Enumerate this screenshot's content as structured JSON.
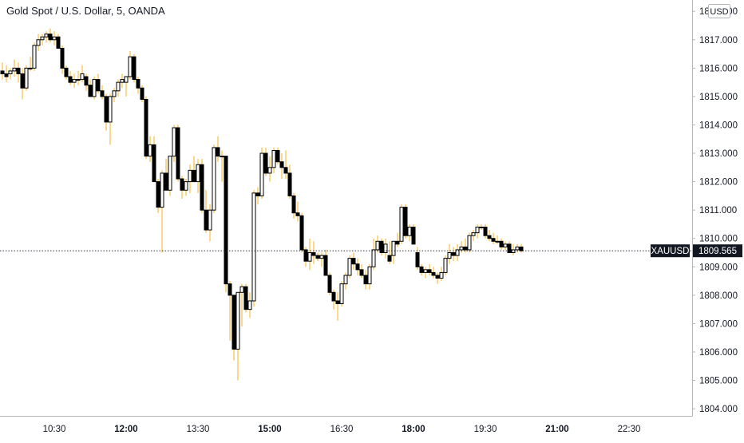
{
  "chart_title": "Gold Spot / U.S. Dollar, 5, OANDA",
  "currency": "USD",
  "symbol_tag": "XAUUSD",
  "last_price_label": "1809.565",
  "colors": {
    "up": "#ffffff",
    "down": "#000000",
    "wick": "#f5b21b",
    "border": "#000000",
    "last_tag": "#131722"
  },
  "chart_data": {
    "type": "candlestick",
    "title": "Gold Spot / U.S. Dollar, 5, OANDA",
    "interval": "5",
    "ylim": [
      1803.75,
      1818.4
    ],
    "y_ticks": [
      {
        "value": 1804,
        "label": "1804.000"
      },
      {
        "value": 1805,
        "label": "1805.000"
      },
      {
        "value": 1806,
        "label": "1806.000"
      },
      {
        "value": 1807,
        "label": "1807.000"
      },
      {
        "value": 1808,
        "label": "1808.000"
      },
      {
        "value": 1809,
        "label": "1809.000"
      },
      {
        "value": 1810,
        "label": "1810.000"
      },
      {
        "value": 1811,
        "label": "1811.000"
      },
      {
        "value": 1812,
        "label": "1812.000"
      },
      {
        "value": 1813,
        "label": "1813.000"
      },
      {
        "value": 1814,
        "label": "1814.000"
      },
      {
        "value": 1815,
        "label": "1815.000"
      },
      {
        "value": 1816,
        "label": "1816.000"
      },
      {
        "value": 1817,
        "label": "1817.000"
      },
      {
        "value": 1818,
        "label": "1818.000"
      }
    ],
    "x_ticks": [
      {
        "index": 6,
        "label": "10:30",
        "bold": false
      },
      {
        "index": 24,
        "label": "12:00",
        "bold": true
      },
      {
        "index": 42,
        "label": "13:30",
        "bold": false
      },
      {
        "index": 60,
        "label": "15:00",
        "bold": true
      },
      {
        "index": 78,
        "label": "16:30",
        "bold": false
      },
      {
        "index": 96,
        "label": "18:00",
        "bold": true
      },
      {
        "index": 114,
        "label": "19:30",
        "bold": false
      },
      {
        "index": 132,
        "label": "21:00",
        "bold": true
      },
      {
        "index": 150,
        "label": "22:30",
        "bold": false
      }
    ],
    "last_price": 1809.565,
    "ohlc": [
      [
        1815.9,
        1816.2,
        1815.6,
        1815.8
      ],
      [
        1815.8,
        1816.1,
        1815.5,
        1815.7
      ],
      [
        1815.8,
        1816.0,
        1815.6,
        1815.9
      ],
      [
        1815.9,
        1816.3,
        1815.7,
        1816.0
      ],
      [
        1816.0,
        1816.2,
        1815.5,
        1815.8
      ],
      [
        1815.8,
        1816.0,
        1814.9,
        1815.3
      ],
      [
        1815.3,
        1816.1,
        1815.2,
        1816.0
      ],
      [
        1816.0,
        1816.4,
        1815.9,
        1816.0
      ],
      [
        1816.0,
        1816.9,
        1815.9,
        1816.8
      ],
      [
        1816.8,
        1817.2,
        1816.6,
        1817.0
      ],
      [
        1817.0,
        1817.2,
        1816.8,
        1817.1
      ],
      [
        1817.1,
        1817.3,
        1816.9,
        1817.2
      ],
      [
        1817.2,
        1817.4,
        1816.9,
        1817.0
      ],
      [
        1817.0,
        1817.3,
        1816.8,
        1817.1
      ],
      [
        1817.1,
        1817.2,
        1816.7,
        1816.7
      ],
      [
        1816.7,
        1816.8,
        1815.8,
        1816.0
      ],
      [
        1816.0,
        1816.1,
        1815.6,
        1815.7
      ],
      [
        1815.7,
        1815.9,
        1815.4,
        1815.5
      ],
      [
        1815.5,
        1815.8,
        1815.3,
        1815.6
      ],
      [
        1815.6,
        1815.9,
        1815.4,
        1815.6
      ],
      [
        1815.6,
        1816.1,
        1815.5,
        1815.8
      ],
      [
        1815.7,
        1815.8,
        1815.2,
        1815.4
      ],
      [
        1815.4,
        1815.6,
        1815.0,
        1815.0
      ],
      [
        1815.0,
        1815.7,
        1814.9,
        1815.6
      ],
      [
        1815.6,
        1815.8,
        1815.1,
        1815.2
      ],
      [
        1815.2,
        1815.4,
        1814.9,
        1815.0
      ],
      [
        1815.0,
        1815.1,
        1813.8,
        1814.1
      ],
      [
        1814.1,
        1815.1,
        1813.3,
        1815.0
      ],
      [
        1815.0,
        1815.3,
        1814.8,
        1815.2
      ],
      [
        1815.2,
        1815.6,
        1815.0,
        1815.5
      ],
      [
        1815.5,
        1815.8,
        1815.3,
        1815.6
      ],
      [
        1815.5,
        1815.7,
        1815.0,
        1815.7
      ],
      [
        1815.7,
        1816.6,
        1815.6,
        1816.4
      ],
      [
        1816.4,
        1816.5,
        1815.5,
        1815.6
      ],
      [
        1815.6,
        1815.7,
        1815.1,
        1815.3
      ],
      [
        1815.3,
        1815.4,
        1814.8,
        1814.9
      ],
      [
        1814.9,
        1815.0,
        1812.8,
        1812.9
      ],
      [
        1812.9,
        1813.6,
        1812.7,
        1813.3
      ],
      [
        1813.3,
        1813.6,
        1812.0,
        1812.0
      ],
      [
        1812.0,
        1812.1,
        1810.9,
        1811.1
      ],
      [
        1811.1,
        1812.4,
        1809.5,
        1812.3
      ],
      [
        1812.3,
        1812.8,
        1811.7,
        1811.7
      ],
      [
        1811.7,
        1812.9,
        1811.5,
        1812.9
      ],
      [
        1812.9,
        1814.0,
        1812.7,
        1813.9
      ],
      [
        1813.9,
        1814.0,
        1812.0,
        1812.1
      ],
      [
        1812.1,
        1812.2,
        1811.4,
        1811.7
      ],
      [
        1811.7,
        1812.1,
        1811.5,
        1812.0
      ],
      [
        1812.0,
        1812.6,
        1811.6,
        1812.4
      ],
      [
        1812.4,
        1812.9,
        1812.0,
        1812.0
      ],
      [
        1812.0,
        1812.8,
        1811.6,
        1812.6
      ],
      [
        1812.6,
        1812.8,
        1810.9,
        1811.0
      ],
      [
        1811.0,
        1811.7,
        1810.2,
        1810.3
      ],
      [
        1810.3,
        1811.2,
        1809.9,
        1811.0
      ],
      [
        1811.0,
        1813.3,
        1810.9,
        1813.2
      ],
      [
        1813.2,
        1813.6,
        1812.7,
        1812.9
      ],
      [
        1812.9,
        1813.1,
        1812.0,
        1812.9
      ],
      [
        1812.9,
        1812.9,
        1808.1,
        1808.4
      ],
      [
        1808.4,
        1808.5,
        1806.4,
        1808.0
      ],
      [
        1808.0,
        1808.0,
        1805.7,
        1806.1
      ],
      [
        1806.1,
        1808.1,
        1805.0,
        1808.1
      ],
      [
        1808.1,
        1808.4,
        1806.9,
        1808.3
      ],
      [
        1808.3,
        1808.4,
        1807.4,
        1807.5
      ],
      [
        1807.5,
        1808.1,
        1807.2,
        1807.8
      ],
      [
        1807.8,
        1811.7,
        1807.6,
        1811.6
      ],
      [
        1811.6,
        1811.8,
        1811.2,
        1811.5
      ],
      [
        1811.5,
        1813.2,
        1811.4,
        1813.0
      ],
      [
        1813.0,
        1813.2,
        1812.2,
        1812.3
      ],
      [
        1812.3,
        1812.9,
        1812.0,
        1812.5
      ],
      [
        1812.5,
        1813.2,
        1812.3,
        1813.1
      ],
      [
        1813.1,
        1813.2,
        1812.6,
        1812.7
      ],
      [
        1812.7,
        1813.0,
        1812.1,
        1812.5
      ],
      [
        1812.5,
        1813.1,
        1812.1,
        1812.3
      ],
      [
        1812.3,
        1812.6,
        1811.4,
        1811.5
      ],
      [
        1811.5,
        1811.6,
        1810.7,
        1810.9
      ],
      [
        1810.9,
        1811.3,
        1810.6,
        1810.8
      ],
      [
        1810.8,
        1810.9,
        1809.5,
        1809.6
      ],
      [
        1809.6,
        1809.7,
        1809.0,
        1809.2
      ],
      [
        1809.2,
        1810.0,
        1808.9,
        1809.5
      ],
      [
        1809.5,
        1809.9,
        1809.1,
        1809.4
      ],
      [
        1809.4,
        1809.5,
        1809.2,
        1809.3
      ],
      [
        1809.3,
        1809.5,
        1809.0,
        1809.4
      ],
      [
        1809.4,
        1809.6,
        1808.7,
        1808.7
      ],
      [
        1808.7,
        1808.8,
        1808.0,
        1808.1
      ],
      [
        1808.1,
        1808.2,
        1807.5,
        1807.8
      ],
      [
        1807.8,
        1808.1,
        1807.1,
        1807.7
      ],
      [
        1807.7,
        1808.5,
        1807.6,
        1808.4
      ],
      [
        1808.4,
        1808.8,
        1808.2,
        1808.7
      ],
      [
        1808.7,
        1809.4,
        1808.6,
        1809.3
      ],
      [
        1809.3,
        1809.5,
        1808.9,
        1809.1
      ],
      [
        1809.1,
        1809.3,
        1808.7,
        1808.9
      ],
      [
        1808.9,
        1809.1,
        1808.6,
        1808.7
      ],
      [
        1808.7,
        1808.9,
        1808.2,
        1808.4
      ],
      [
        1808.4,
        1809.1,
        1808.2,
        1809.0
      ],
      [
        1809.0,
        1810.0,
        1808.9,
        1809.6
      ],
      [
        1809.6,
        1810.1,
        1809.5,
        1809.9
      ],
      [
        1809.9,
        1810.0,
        1809.4,
        1809.5
      ],
      [
        1809.5,
        1810.0,
        1809.3,
        1809.8
      ],
      [
        1809.4,
        1809.9,
        1809.1,
        1809.2
      ],
      [
        1809.4,
        1809.9,
        1809.1,
        1809.9
      ],
      [
        1809.9,
        1810.2,
        1809.7,
        1809.8
      ],
      [
        1809.9,
        1811.2,
        1809.8,
        1811.1
      ],
      [
        1811.1,
        1811.2,
        1810.0,
        1810.1
      ],
      [
        1810.1,
        1810.5,
        1809.9,
        1810.4
      ],
      [
        1810.4,
        1810.5,
        1809.9,
        1809.8
      ],
      [
        1809.5,
        1809.7,
        1808.9,
        1809.0
      ],
      [
        1809.0,
        1809.1,
        1808.7,
        1808.8
      ],
      [
        1808.8,
        1809.0,
        1808.6,
        1808.9
      ],
      [
        1808.9,
        1809.1,
        1808.7,
        1808.8
      ],
      [
        1808.8,
        1809.0,
        1808.6,
        1808.7
      ],
      [
        1808.7,
        1808.8,
        1808.4,
        1808.6
      ],
      [
        1808.6,
        1809.0,
        1808.5,
        1808.8
      ],
      [
        1808.8,
        1809.4,
        1808.7,
        1809.3
      ],
      [
        1809.3,
        1809.8,
        1809.1,
        1809.5
      ],
      [
        1809.5,
        1809.7,
        1809.2,
        1809.4
      ],
      [
        1809.4,
        1809.8,
        1809.2,
        1809.6
      ],
      [
        1809.6,
        1809.9,
        1809.5,
        1809.7
      ],
      [
        1809.7,
        1810.0,
        1809.5,
        1809.6
      ],
      [
        1809.6,
        1810.2,
        1809.5,
        1810.1
      ],
      [
        1810.1,
        1810.3,
        1809.9,
        1810.2
      ],
      [
        1810.2,
        1810.5,
        1810.0,
        1810.4
      ],
      [
        1810.4,
        1810.5,
        1810.3,
        1810.4
      ],
      [
        1810.4,
        1810.5,
        1810.0,
        1810.1
      ],
      [
        1810.1,
        1810.3,
        1809.9,
        1810.0
      ],
      [
        1810.0,
        1810.2,
        1809.8,
        1809.9
      ],
      [
        1809.9,
        1810.1,
        1809.8,
        1809.9
      ],
      [
        1809.9,
        1810.0,
        1809.6,
        1809.7
      ],
      [
        1809.7,
        1809.9,
        1809.6,
        1809.8
      ],
      [
        1809.8,
        1809.9,
        1809.5,
        1809.5
      ],
      [
        1809.5,
        1809.8,
        1809.4,
        1809.6
      ],
      [
        1809.6,
        1809.8,
        1809.5,
        1809.7
      ],
      [
        1809.7,
        1809.8,
        1809.5,
        1809.565
      ]
    ]
  }
}
